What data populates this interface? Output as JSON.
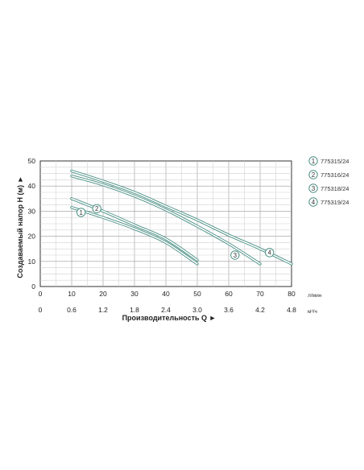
{
  "chart_data": {
    "type": "line",
    "ylabel": "Создаваемый напор H (м) ►",
    "xlabel": "Производительность Q ►",
    "y_ticks": [
      "0",
      "10",
      "20",
      "30",
      "40",
      "50"
    ],
    "ylim": [
      0,
      50
    ],
    "x_ticks_lpm": [
      "0",
      "10",
      "20",
      "30",
      "40",
      "50",
      "60",
      "70",
      "80"
    ],
    "x_ticks_m3h": [
      "0",
      "0.6",
      "1.2",
      "1.8",
      "2.4",
      "3.0",
      "3.6",
      "4.2",
      "4.8"
    ],
    "xlim": [
      0,
      80
    ],
    "unit_lpm": "л/мин",
    "unit_m3h": "м³/ч",
    "grid": true,
    "legend_position": "right",
    "curve_color": "#4a8f85",
    "series": [
      {
        "marker": "1",
        "name": "775315/24",
        "x": [
          10,
          20,
          30,
          40,
          50
        ],
        "y": [
          31.5,
          27.5,
          23,
          17.5,
          9
        ]
      },
      {
        "marker": "2",
        "name": "775316/24",
        "x": [
          10,
          20,
          30,
          40,
          50
        ],
        "y": [
          35,
          30,
          24.5,
          19,
          10.5
        ]
      },
      {
        "marker": "3",
        "name": "775318/24",
        "x": [
          10,
          20,
          30,
          40,
          50,
          60,
          70
        ],
        "y": [
          44,
          40.5,
          36,
          30.5,
          24,
          17,
          9
        ]
      },
      {
        "marker": "4",
        "name": "775319/24",
        "x": [
          10,
          20,
          30,
          40,
          50,
          60,
          70,
          80
        ],
        "y": [
          46,
          42,
          37.5,
          32,
          26.5,
          20.5,
          15,
          9
        ]
      }
    ],
    "marker_positions": [
      {
        "label": "1",
        "x": 13,
        "y": 29.5
      },
      {
        "label": "2",
        "x": 18,
        "y": 31
      },
      {
        "label": "3",
        "x": 62,
        "y": 12.5
      },
      {
        "label": "4",
        "x": 73,
        "y": 13.5
      }
    ]
  }
}
